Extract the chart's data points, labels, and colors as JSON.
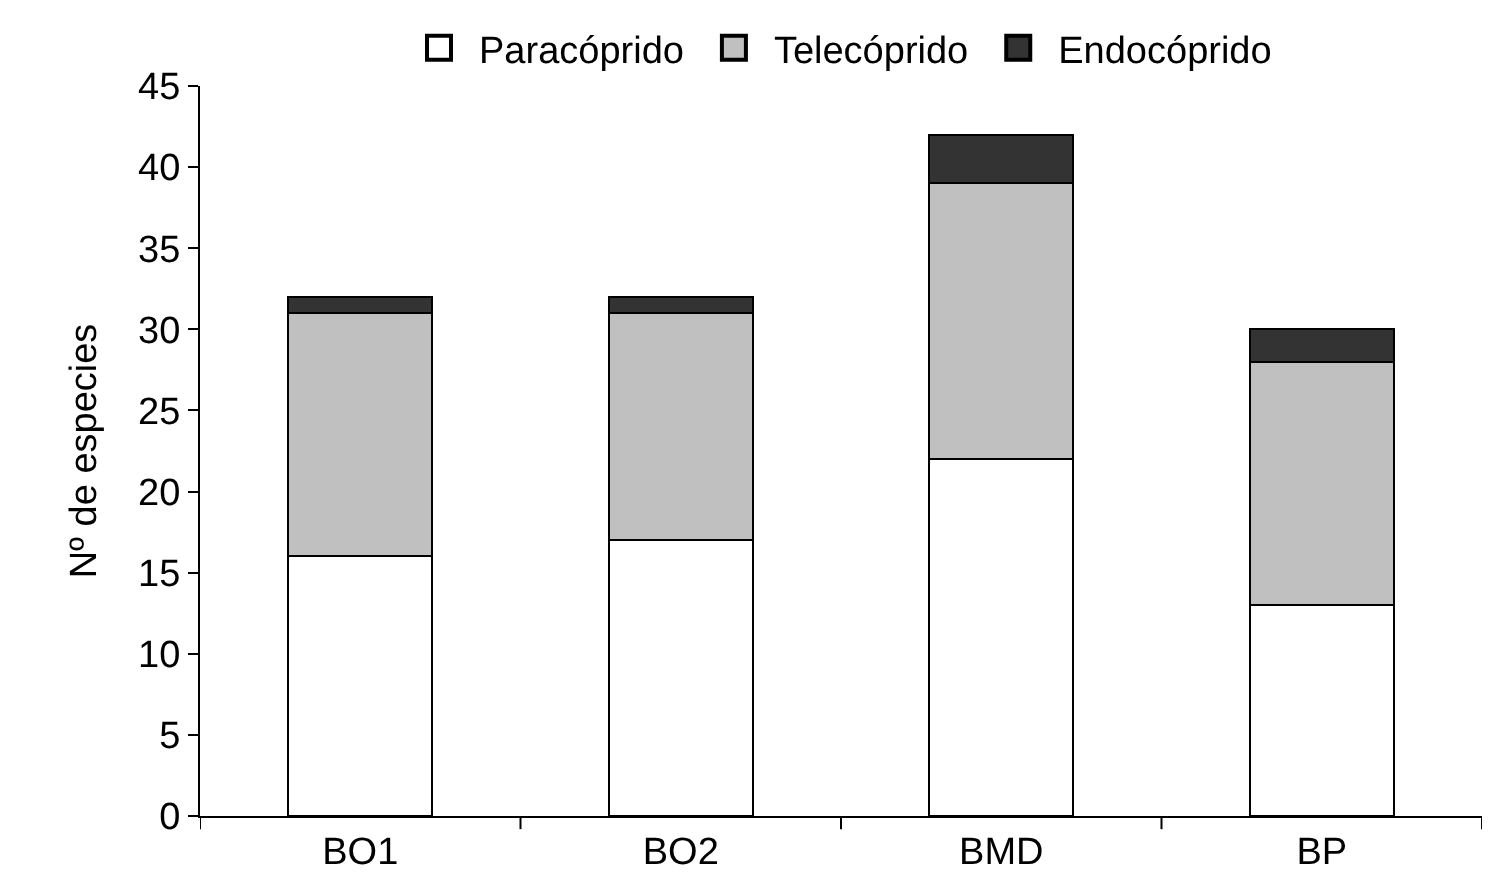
{
  "chart_data": {
    "type": "bar",
    "stacked": true,
    "ylabel": "Nº de especies",
    "categories": [
      "BO1",
      "BO2",
      "BMD",
      "BP"
    ],
    "series": [
      {
        "name": "Paracóprido",
        "color": "#ffffff",
        "values": [
          16,
          17,
          22,
          13
        ]
      },
      {
        "name": "Telecóprido",
        "color": "#c0c0c0",
        "values": [
          15,
          14,
          17,
          15
        ]
      },
      {
        "name": "Endocóprido",
        "color": "#333333",
        "values": [
          1,
          1,
          3,
          2
        ]
      }
    ],
    "ylim": [
      0,
      45
    ],
    "yticks": [
      0,
      5,
      10,
      15,
      20,
      25,
      30,
      35,
      40,
      45
    ],
    "grid": false,
    "legend": "top"
  }
}
